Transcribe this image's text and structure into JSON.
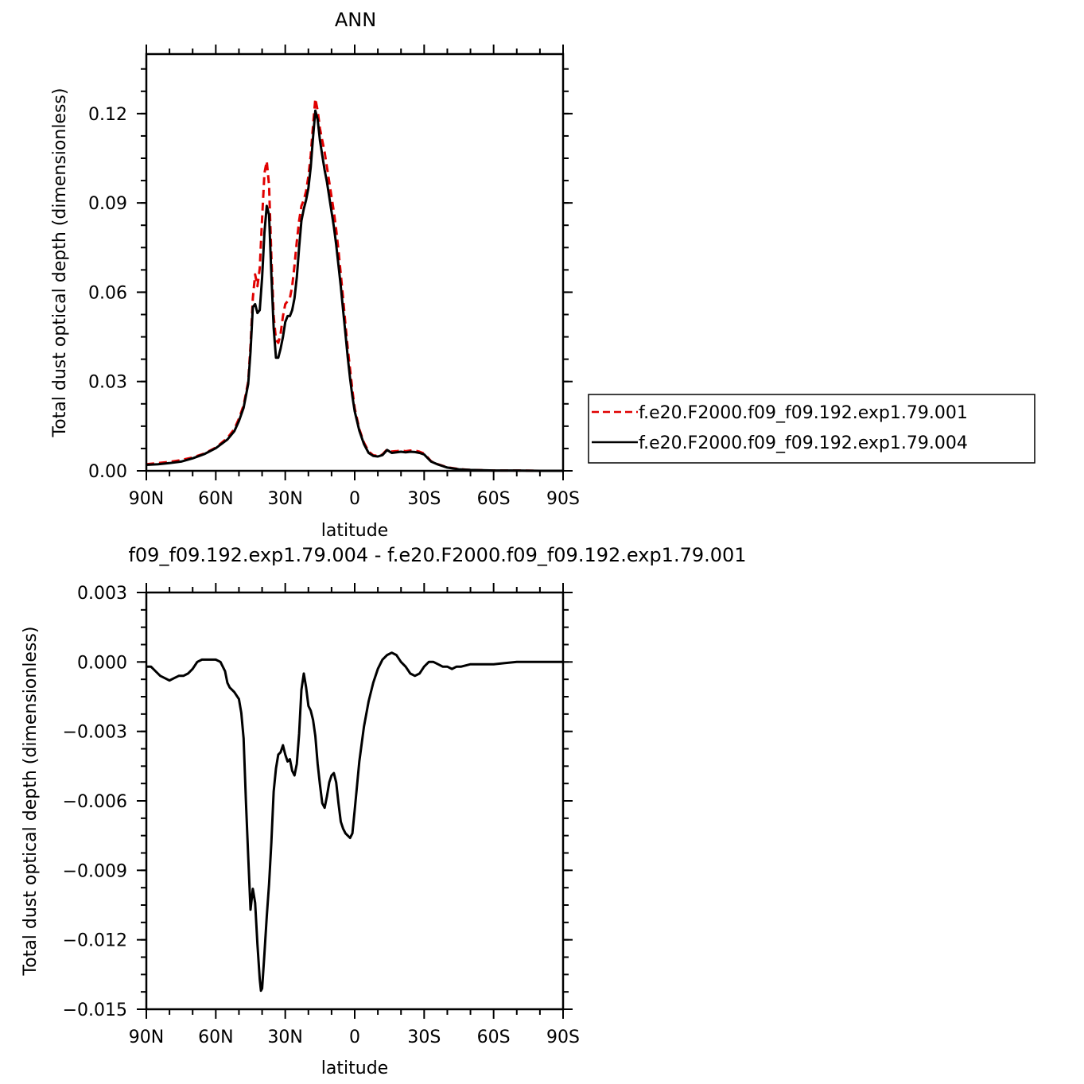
{
  "chart_data": [
    {
      "type": "line",
      "title": "ANN",
      "xlabel": "latitude",
      "ylabel": "Total dust optical depth (dimensionless)",
      "xlim": [
        90,
        -90
      ],
      "ylim": [
        0,
        0.14
      ],
      "xticks": [
        90,
        60,
        30,
        0,
        -30,
        -60,
        -90
      ],
      "xtick_labels": [
        "90N",
        "60N",
        "30N",
        "0",
        "30S",
        "60S",
        "90S"
      ],
      "yticks": [
        0,
        0.03,
        0.06,
        0.09,
        0.12
      ],
      "ytick_labels": [
        "0.00",
        "0.03",
        "0.06",
        "0.09",
        "0.12"
      ],
      "legend_position": "right",
      "series": [
        {
          "name": "f.e20.F2000.f09_f09.192.exp1.79.001",
          "color": "#e00000",
          "dash": "dashed",
          "x": [
            90,
            85,
            80,
            75,
            70,
            65,
            60,
            55,
            52,
            50,
            48,
            46,
            45,
            44,
            43,
            42,
            41,
            40,
            39,
            38,
            37,
            36,
            35,
            34,
            33,
            32,
            31,
            30,
            29,
            28,
            27,
            26,
            25,
            24,
            23,
            22,
            21,
            20,
            19,
            18,
            17,
            16,
            15,
            14,
            13,
            12,
            11,
            10,
            9,
            8,
            7,
            6,
            5,
            4,
            3,
            2,
            1,
            0,
            -2,
            -4,
            -6,
            -8,
            -10,
            -12,
            -14,
            -16,
            -18,
            -20,
            -22,
            -24,
            -26,
            -28,
            -30,
            -33,
            -36,
            -40,
            -45,
            -50,
            -55,
            -60,
            -70,
            -80,
            -90
          ],
          "y": [
            0.0022,
            0.0026,
            0.003,
            0.0036,
            0.0045,
            0.0058,
            0.0078,
            0.011,
            0.014,
            0.0175,
            0.022,
            0.03,
            0.042,
            0.058,
            0.066,
            0.062,
            0.068,
            0.085,
            0.1,
            0.104,
            0.096,
            0.072,
            0.052,
            0.044,
            0.043,
            0.046,
            0.052,
            0.056,
            0.057,
            0.058,
            0.062,
            0.069,
            0.077,
            0.084,
            0.089,
            0.091,
            0.094,
            0.099,
            0.106,
            0.116,
            0.125,
            0.121,
            0.115,
            0.111,
            0.107,
            0.102,
            0.097,
            0.092,
            0.087,
            0.081,
            0.074,
            0.066,
            0.058,
            0.049,
            0.041,
            0.034,
            0.027,
            0.021,
            0.014,
            0.0095,
            0.0065,
            0.0052,
            0.005,
            0.0055,
            0.0072,
            0.0065,
            0.0066,
            0.0068,
            0.0066,
            0.0068,
            0.0068,
            0.0064,
            0.0058,
            0.0032,
            0.0022,
            0.0012,
            0.0006,
            0.0003,
            0.0002,
            0.0001,
            0.0001,
            0.0,
            0.0
          ]
        },
        {
          "name": "f.e20.F2000.f09_f09.192.exp1.79.004",
          "color": "#000000",
          "dash": "solid",
          "x": [
            90,
            85,
            80,
            75,
            70,
            65,
            60,
            55,
            52,
            50,
            48,
            46,
            45,
            44,
            43,
            42,
            41,
            40,
            39,
            38,
            37,
            36,
            35,
            34,
            33,
            32,
            31,
            30,
            29,
            28,
            27,
            26,
            25,
            24,
            23,
            22,
            21,
            20,
            19,
            18,
            17,
            16,
            15,
            14,
            13,
            12,
            11,
            10,
            9,
            8,
            7,
            6,
            5,
            4,
            3,
            2,
            1,
            0,
            -2,
            -4,
            -6,
            -8,
            -10,
            -12,
            -14,
            -16,
            -18,
            -20,
            -22,
            -24,
            -26,
            -28,
            -30,
            -33,
            -36,
            -40,
            -45,
            -50,
            -55,
            -60,
            -70,
            -80,
            -90
          ],
          "y": [
            0.002,
            0.0022,
            0.0026,
            0.0031,
            0.0042,
            0.0056,
            0.0076,
            0.0105,
            0.0133,
            0.0167,
            0.0212,
            0.0292,
            0.04,
            0.055,
            0.056,
            0.053,
            0.054,
            0.065,
            0.08,
            0.089,
            0.086,
            0.066,
            0.048,
            0.038,
            0.038,
            0.041,
            0.045,
            0.05,
            0.052,
            0.052,
            0.054,
            0.058,
            0.065,
            0.075,
            0.084,
            0.088,
            0.091,
            0.095,
            0.102,
            0.112,
            0.121,
            0.118,
            0.111,
            0.106,
            0.101,
            0.097,
            0.092,
            0.087,
            0.082,
            0.076,
            0.069,
            0.062,
            0.054,
            0.046,
            0.038,
            0.031,
            0.025,
            0.02,
            0.0135,
            0.009,
            0.006,
            0.005,
            0.0048,
            0.0053,
            0.007,
            0.006,
            0.0062,
            0.0064,
            0.0062,
            0.0064,
            0.0063,
            0.006,
            0.0055,
            0.0031,
            0.0021,
            0.0011,
            0.0005,
            0.0003,
            0.0002,
            0.0001,
            0.0001,
            0.0,
            0.0
          ]
        }
      ]
    },
    {
      "type": "line",
      "title": "f09_f09.192.exp1.79.004 - f.e20.F2000.f09_f09.192.exp1.79.001",
      "xlabel": "latitude",
      "ylabel": "Total dust optical depth (dimensionless)",
      "xlim": [
        90,
        -90
      ],
      "ylim": [
        -0.015,
        0.003
      ],
      "xticks": [
        90,
        60,
        30,
        0,
        -30,
        -60,
        -90
      ],
      "xtick_labels": [
        "90N",
        "60N",
        "30N",
        "0",
        "30S",
        "60S",
        "90S"
      ],
      "yticks": [
        0.003,
        0.0,
        -0.003,
        -0.006,
        -0.009,
        -0.012,
        -0.015
      ],
      "ytick_labels": [
        "0.003",
        "0.000",
        "−0.003",
        "−0.006",
        "−0.009",
        "−0.012",
        "−0.015"
      ],
      "series": [
        {
          "color": "#000000",
          "dash": "solid",
          "x": [
            90,
            89,
            88,
            86,
            84,
            82,
            80,
            78,
            76,
            74,
            72,
            70,
            68,
            66,
            65,
            64,
            62,
            60,
            58,
            56,
            55,
            54,
            52,
            50,
            49,
            48,
            47,
            46,
            45,
            44,
            43,
            42,
            41,
            40.5,
            40,
            39,
            38,
            37,
            36,
            35,
            34,
            33,
            32,
            31,
            30,
            29,
            28,
            27,
            26,
            25,
            24,
            23,
            22,
            21,
            20,
            19,
            18,
            17,
            16,
            15,
            14,
            13,
            12,
            11,
            10,
            9,
            8,
            7,
            6,
            5,
            4,
            3,
            2,
            1,
            0,
            -2,
            -4,
            -6,
            -8,
            -10,
            -12,
            -14,
            -16,
            -18,
            -20,
            -22,
            -24,
            -26,
            -28,
            -30,
            -32,
            -34,
            -36,
            -38,
            -40,
            -42,
            -44,
            -46,
            -50,
            -55,
            -60,
            -70,
            -80,
            -90
          ],
          "y": [
            -0.0002,
            -0.0002,
            -0.0002,
            -0.0004,
            -0.0006,
            -0.0007,
            -0.0008,
            -0.0007,
            -0.0006,
            -0.0006,
            -0.0005,
            -0.0003,
            0.0,
            0.0001,
            0.0001,
            0.0001,
            0.0001,
            0.0001,
            0.0,
            -0.0004,
            -0.0009,
            -0.0011,
            -0.0013,
            -0.0016,
            -0.0022,
            -0.0033,
            -0.006,
            -0.0084,
            -0.0107,
            -0.0098,
            -0.0104,
            -0.0122,
            -0.0137,
            -0.0142,
            -0.0141,
            -0.0126,
            -0.011,
            -0.0096,
            -0.0078,
            -0.0056,
            -0.0046,
            -0.004,
            -0.0039,
            -0.0036,
            -0.004,
            -0.0043,
            -0.0042,
            -0.0047,
            -0.0049,
            -0.0044,
            -0.0031,
            -0.0012,
            -0.0005,
            -0.0011,
            -0.0019,
            -0.0021,
            -0.0025,
            -0.0032,
            -0.0044,
            -0.0053,
            -0.0061,
            -0.0063,
            -0.0058,
            -0.0052,
            -0.0049,
            -0.0048,
            -0.0052,
            -0.0061,
            -0.0069,
            -0.0072,
            -0.0074,
            -0.0075,
            -0.0076,
            -0.0074,
            -0.0064,
            -0.0043,
            -0.0028,
            -0.0017,
            -0.0009,
            -0.0003,
            0.0001,
            0.0003,
            0.0004,
            0.0003,
            0.0,
            -0.0002,
            -0.0005,
            -0.0006,
            -0.0005,
            -0.0002,
            0.0,
            0.0,
            -0.0001,
            -0.0002,
            -0.0002,
            -0.0003,
            -0.0002,
            -0.0002,
            -0.0001,
            -0.0001,
            -0.0001,
            0.0,
            0.0,
            0.0
          ]
        }
      ]
    }
  ]
}
